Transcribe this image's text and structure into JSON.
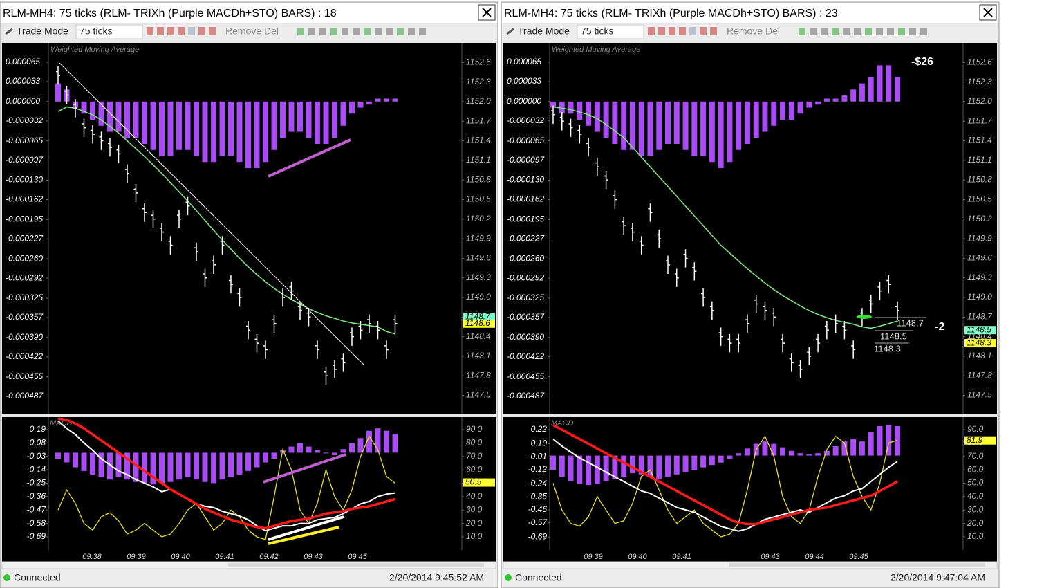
{
  "panels": [
    {
      "title": "RLM-MH4: 75 ticks (RLM-  TRIXh (Purple MACDh+STO) BARS) : 18",
      "toolbar": {
        "mode": "Trade Mode",
        "interval": "75 ticks",
        "remove": "Remove Del"
      },
      "price_pane": {
        "label": "Weighted Moving Average",
        "ylim": [
          -0.000516,
          9.7e-05
        ],
        "yticks": [
          6.5e-05,
          3.3e-05,
          {
            "value": 0,
            "label": "0.000000"
          },
          -3.2e-05,
          -6.5e-05,
          -9.7e-05,
          {
            "value": -0.00013,
            "label": "-0.000130"
          },
          -0.000162,
          -0.000195,
          -0.000227,
          {
            "value": -0.00026,
            "label": "-0.000260"
          },
          -0.000292,
          -0.000325,
          -0.000357,
          {
            "value": -0.00039,
            "label": "-0.000390"
          },
          -0.000422,
          -0.000455,
          -0.000487
        ],
        "y2lim": [
          1147.22,
          1152.9
        ],
        "y2ticks": [
          1152.6,
          1152.3,
          {
            "value": 1152,
            "label": "1152.0"
          },
          1151.7,
          1151.4,
          1151.1,
          1150.8,
          1150.5,
          1150.2,
          1149.9,
          1149.6,
          1149.3,
          {
            "value": 1149,
            "label": "1149.0"
          },
          1148.7,
          1148.4,
          1148.1,
          1147.8,
          1147.5
        ],
        "macdh": {
          "color": "#a94cf5",
          "values": [
            3e-05,
            2e-05,
            -1e-05,
            -2e-05,
            -3e-05,
            -4e-05,
            -5e-05,
            -5e-05,
            -6e-05,
            -6e-05,
            -7e-05,
            -8e-05,
            -9e-05,
            -9e-05,
            -8e-05,
            -8e-05,
            -9e-05,
            -0.0001,
            -0.0001,
            -9e-05,
            -9e-05,
            -0.0001,
            -0.00011,
            -0.00011,
            -0.0001,
            -8e-05,
            -6e-05,
            -5e-05,
            -5e-05,
            -6e-05,
            -7e-05,
            -7e-05,
            -6e-05,
            -4e-05,
            -2e-05,
            -1e-05,
            -5e-06,
            5e-06,
            5e-06,
            5e-06
          ]
        },
        "closes": {
          "color": "#ffffff",
          "values": [
            1152.4,
            1152.1,
            1151.9,
            1151.6,
            1151.5,
            1151.4,
            1151.3,
            1151.2,
            1150.9,
            1150.6,
            1150.3,
            1150.2,
            1150.0,
            1149.8,
            1150.2,
            1150.4,
            1149.7,
            1149.3,
            1149.5,
            1149.8,
            1149.2,
            1149.0,
            1148.5,
            1148.3,
            1148.2,
            1148.6,
            1149.0,
            1149.1,
            1148.8,
            1148.7,
            1148.2,
            1147.8,
            1147.9,
            1148.0,
            1148.4,
            1148.5,
            1148.6,
            1148.5,
            1148.2,
            1148.6
          ]
        },
        "wma": {
          "color": "#7ee07e",
          "values": [
            1151.85,
            1151.92,
            1151.9,
            1151.85,
            1151.8,
            1151.72,
            1151.62,
            1151.52,
            1151.4,
            1151.28,
            1151.16,
            1151.03,
            1150.9,
            1150.76,
            1150.62,
            1150.48,
            1150.33,
            1150.18,
            1150.03,
            1149.88,
            1149.74,
            1149.6,
            1149.47,
            1149.35,
            1149.24,
            1149.14,
            1149.05,
            1148.97,
            1148.9,
            1148.83,
            1148.77,
            1148.72,
            1148.68,
            1148.64,
            1148.61,
            1148.59,
            1148.57,
            1148.55,
            1148.48,
            1148.44
          ]
        },
        "price_tags": [
          {
            "value": 1148.7,
            "color": "#7dffc8"
          },
          {
            "value": 1148.6,
            "color": "#ffff33"
          }
        ]
      },
      "macd_pane": {
        "label": "MACD",
        "ylim": [
          -0.798,
          0.292
        ],
        "yticks": [
          0.19,
          0.08,
          -0.03,
          -0.14,
          -0.25,
          -0.36,
          -0.47,
          -0.58,
          -0.69
        ],
        "y2lim": [
          0.2,
          99.3
        ],
        "y2ticks": [
          {
            "value": 90,
            "label": "90.0"
          },
          {
            "value": 80,
            "label": "80.0"
          },
          {
            "value": 70,
            "label": "70.0"
          },
          {
            "value": 60,
            "label": "60.0"
          },
          {
            "value": 50,
            "label": "50.0"
          },
          {
            "value": 40,
            "label": "40.0"
          },
          {
            "value": 30,
            "label": "30.0"
          },
          {
            "value": 20,
            "label": "20.0"
          },
          {
            "value": 10,
            "label": "10.0"
          }
        ],
        "histogram": {
          "color": "#a94cf5",
          "values": [
            -0.05,
            -0.08,
            -0.12,
            -0.15,
            -0.18,
            -0.2,
            -0.22,
            -0.2,
            -0.22,
            -0.24,
            -0.25,
            -0.26,
            -0.25,
            -0.24,
            -0.22,
            -0.2,
            -0.22,
            -0.24,
            -0.25,
            -0.22,
            -0.2,
            -0.18,
            -0.15,
            -0.12,
            -0.08,
            -0.05,
            0.02,
            0.05,
            0.08,
            0.05,
            0.02,
            0.0,
            -0.02,
            0.03,
            0.08,
            0.12,
            0.18,
            0.2,
            0.18,
            0.15
          ]
        },
        "signal": {
          "color": "#ff1a1a",
          "values": [
            0.28,
            0.27,
            0.24,
            0.2,
            0.15,
            0.1,
            0.05,
            0.0,
            -0.05,
            -0.1,
            -0.15,
            -0.2,
            -0.25,
            -0.3,
            -0.34,
            -0.38,
            -0.42,
            -0.46,
            -0.49,
            -0.52,
            -0.55,
            -0.57,
            -0.59,
            -0.61,
            -0.62,
            -0.6,
            -0.58,
            -0.56,
            -0.55,
            -0.54,
            -0.52,
            -0.5,
            -0.49,
            -0.48,
            -0.46,
            -0.45,
            -0.44,
            -0.42,
            -0.4,
            -0.38
          ]
        },
        "macd": {
          "color": "#ffffff",
          "values": [
            0.26,
            0.2,
            0.15,
            0.08,
            0.02,
            -0.05,
            -0.1,
            -0.15,
            -0.18,
            -0.22,
            -0.25,
            -0.28,
            -0.32,
            -0.3,
            -0.34,
            -0.38,
            -0.42,
            -0.44,
            -0.45,
            -0.48,
            -0.5,
            -0.52,
            -0.55,
            -0.6,
            -0.64,
            -0.62,
            -0.6,
            -0.6,
            -0.58,
            -0.58,
            -0.55,
            -0.54,
            -0.53,
            -0.5,
            -0.46,
            -0.42,
            -0.4,
            -0.36,
            -0.34,
            -0.33
          ]
        },
        "stochastic": {
          "color": "#e8e020",
          "values": [
            30,
            45,
            35,
            20,
            15,
            25,
            28,
            22,
            12,
            15,
            20,
            15,
            10,
            12,
            20,
            30,
            35,
            25,
            15,
            20,
            30,
            25,
            15,
            10,
            8,
            40,
            75,
            60,
            30,
            20,
            35,
            60,
            40,
            30,
            45,
            70,
            85,
            75,
            55,
            50
          ]
        },
        "value_tag": {
          "value": 50.5,
          "color": "#ffff33"
        }
      },
      "time_labels": [
        "09:38",
        "09:39",
        "09:40",
        "09:41",
        "09:42",
        "09:43",
        "09:45"
      ],
      "status": "Connected",
      "timestamp": "2/20/2014 9:45:52 AM"
    },
    {
      "title": "RLM-MH4: 75 ticks (RLM-  TRIXh (Purple MACDh+STO) BARS) : 23",
      "toolbar": {
        "mode": "Trade Mode",
        "interval": "75 ticks",
        "remove": "Remove Del"
      },
      "price_pane": {
        "label": "Weighted Moving Average",
        "ylim": [
          -0.000516,
          9.7e-05
        ],
        "yticks": [
          6.5e-05,
          3.3e-05,
          {
            "value": 0,
            "label": "0.000000"
          },
          -3.2e-05,
          -6.5e-05,
          -9.7e-05,
          {
            "value": -0.00013,
            "label": "-0.000130"
          },
          -0.000162,
          -0.000195,
          -0.000227,
          {
            "value": -0.00026,
            "label": "-0.000260"
          },
          -0.000292,
          -0.000325,
          -0.000357,
          {
            "value": -0.00039,
            "label": "-0.000390"
          },
          -0.000422,
          -0.000455,
          -0.000487
        ],
        "y2lim": [
          1147.22,
          1152.9
        ],
        "y2ticks": [
          1152.6,
          1152.3,
          {
            "value": 1152,
            "label": "1152.0"
          },
          1151.7,
          1151.4,
          1151.1,
          1150.8,
          1150.5,
          1150.2,
          1149.9,
          1149.6,
          1149.3,
          {
            "value": 1149,
            "label": "1149.0"
          },
          1148.7,
          1148.4,
          1148.1,
          1147.8,
          1147.5
        ],
        "macdh": {
          "color": "#a94cf5",
          "values": [
            -1e-05,
            -2e-05,
            -2e-05,
            -3e-05,
            -4e-05,
            -5e-05,
            -6e-05,
            -7e-05,
            -8e-05,
            -8e-05,
            -9e-05,
            -9e-05,
            -8e-05,
            -7e-05,
            -7e-05,
            -8e-05,
            -9e-05,
            -9e-05,
            -0.0001,
            -0.00011,
            -0.0001,
            -8e-05,
            -7e-05,
            -6e-05,
            -5e-05,
            -4e-05,
            -3e-05,
            -3e-05,
            -2e-05,
            -1e-05,
            -5e-06,
            5e-06,
            5e-06,
            1e-05,
            2e-05,
            3e-05,
            4e-05,
            6e-05,
            6e-05,
            4e-05
          ]
        },
        "closes": {
          "color": "#ffffff",
          "values": [
            1151.8,
            1151.7,
            1151.6,
            1151.5,
            1151.3,
            1151.0,
            1150.8,
            1150.5,
            1150.1,
            1150.0,
            1149.8,
            1150.3,
            1149.9,
            1149.5,
            1149.3,
            1149.6,
            1149.4,
            1149.0,
            1148.8,
            1148.4,
            1148.3,
            1148.3,
            1148.6,
            1148.9,
            1148.8,
            1148.7,
            1148.3,
            1148.0,
            1147.9,
            1148.1,
            1148.3,
            1148.5,
            1148.6,
            1148.5,
            1148.2,
            1148.7,
            1148.9,
            1149.1,
            1149.2,
            1148.8
          ]
        },
        "wma": {
          "color": "#7ee07e",
          "values": [
            1151.92,
            1151.9,
            1151.88,
            1151.84,
            1151.8,
            1151.74,
            1151.65,
            1151.55,
            1151.45,
            1151.3,
            1151.15,
            1151.0,
            1150.85,
            1150.7,
            1150.55,
            1150.4,
            1150.25,
            1150.1,
            1149.95,
            1149.8,
            1149.68,
            1149.56,
            1149.44,
            1149.33,
            1149.22,
            1149.12,
            1149.03,
            1148.95,
            1148.87,
            1148.8,
            1148.74,
            1148.69,
            1148.65,
            1148.62,
            1148.59,
            1148.55,
            1148.53,
            1148.56,
            1148.6,
            1148.64
          ]
        },
        "price_tags": [
          {
            "value": 1148.5,
            "color": "#7dffc8"
          },
          {
            "value": 1148.3,
            "color": "#ffff33"
          }
        ],
        "order_labels": [
          1148.7,
          1148.5,
          1148.3
        ],
        "annotations": [
          "-$26",
          "-2"
        ]
      },
      "macd_pane": {
        "label": "MACD",
        "ylim": [
          -0.8,
          0.326
        ],
        "yticks": [
          0.22,
          {
            "value": 0.1,
            "label": "0.10"
          },
          -0.01,
          -0.12,
          -0.24,
          -0.35,
          -0.46,
          -0.57,
          -0.69
        ],
        "y2lim": [
          0.2,
          99.3
        ],
        "y2ticks": [
          {
            "value": 90,
            "label": "90.0"
          },
          {
            "value": 80,
            "label": "80.0"
          },
          {
            "value": 70,
            "label": "70.0"
          },
          {
            "value": 60,
            "label": "60.0"
          },
          {
            "value": 50,
            "label": "50.0"
          },
          {
            "value": 40,
            "label": "40.0"
          },
          {
            "value": 30,
            "label": "30.0"
          },
          {
            "value": 20,
            "label": "20.0"
          },
          {
            "value": 10,
            "label": "10.0"
          }
        ],
        "histogram": {
          "color": "#a94cf5",
          "values": [
            -0.12,
            -0.18,
            -0.22,
            -0.24,
            -0.25,
            -0.24,
            -0.22,
            -0.2,
            -0.18,
            -0.15,
            -0.16,
            -0.18,
            -0.2,
            -0.18,
            -0.16,
            -0.14,
            -0.12,
            -0.1,
            -0.08,
            -0.06,
            -0.03,
            0.02,
            0.06,
            0.1,
            0.12,
            0.1,
            0.07,
            0.04,
            0.02,
            0.01,
            0.02,
            0.04,
            0.08,
            0.12,
            0.14,
            0.12,
            0.2,
            0.25,
            0.26,
            0.25
          ]
        },
        "signal": {
          "color": "#ff1a1a",
          "values": [
            0.26,
            0.22,
            0.18,
            0.14,
            0.1,
            0.06,
            0.02,
            -0.02,
            -0.06,
            -0.1,
            -0.14,
            -0.18,
            -0.22,
            -0.26,
            -0.3,
            -0.34,
            -0.38,
            -0.42,
            -0.46,
            -0.5,
            -0.54,
            -0.57,
            -0.58,
            -0.58,
            -0.56,
            -0.54,
            -0.52,
            -0.5,
            -0.48,
            -0.46,
            -0.45,
            -0.44,
            -0.42,
            -0.4,
            -0.38,
            -0.36,
            -0.34,
            -0.3,
            -0.26,
            -0.22
          ]
        },
        "macd": {
          "color": "#ffffff",
          "values": [
            0.14,
            0.08,
            0.03,
            -0.02,
            -0.06,
            -0.1,
            -0.14,
            -0.18,
            -0.22,
            -0.26,
            -0.3,
            -0.32,
            -0.36,
            -0.4,
            -0.44,
            -0.46,
            -0.48,
            -0.52,
            -0.56,
            -0.6,
            -0.62,
            -0.64,
            -0.62,
            -0.58,
            -0.54,
            -0.52,
            -0.5,
            -0.48,
            -0.46,
            -0.48,
            -0.44,
            -0.4,
            -0.36,
            -0.34,
            -0.3,
            -0.28,
            -0.22,
            -0.16,
            -0.1,
            -0.05
          ]
        },
        "stochastic": {
          "color": "#e8e020",
          "values": [
            50,
            30,
            20,
            18,
            25,
            40,
            30,
            20,
            22,
            35,
            55,
            60,
            45,
            30,
            20,
            25,
            30,
            20,
            15,
            10,
            12,
            20,
            45,
            75,
            85,
            70,
            40,
            25,
            20,
            30,
            55,
            75,
            85,
            80,
            55,
            40,
            30,
            50,
            80,
            82
          ]
        },
        "value_tag": {
          "value": 81.9,
          "color": "#ffff33"
        }
      },
      "time_labels": [
        "09:39",
        "09:40",
        "09:41",
        "09:43",
        "09:44",
        "09:45"
      ],
      "status": "Connected",
      "timestamp": "2/20/2014 9:47:04 AM"
    }
  ]
}
